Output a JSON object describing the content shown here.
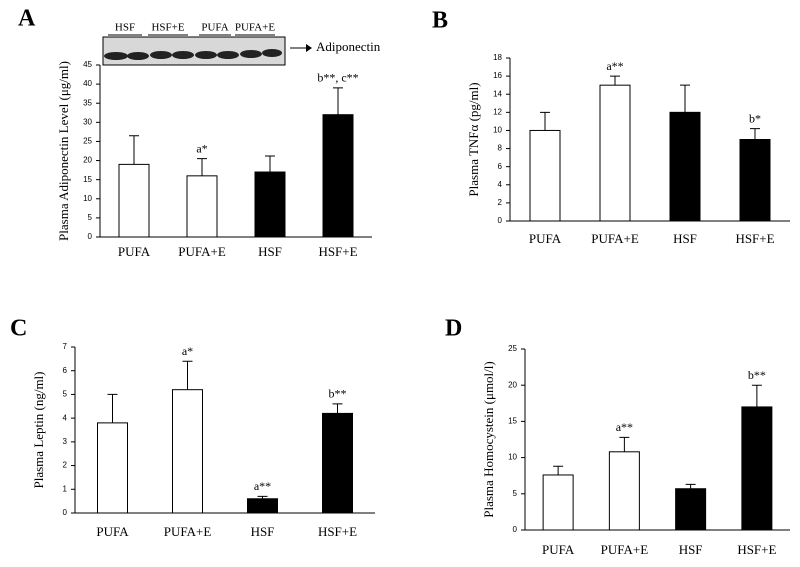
{
  "chart_data": [
    {
      "type": "bar",
      "panel": "A",
      "ylabel": "Plasma Adiponectin Level (μg/ml)",
      "categories": [
        "PUFA",
        "PUFA+E",
        "HSF",
        "HSF+E"
      ],
      "values": [
        19,
        16,
        17,
        32
      ],
      "errors": [
        7.5,
        4.5,
        4.2,
        7
      ],
      "annotations": [
        null,
        "a*",
        null,
        "b**, c**"
      ],
      "colors": [
        "#ffffff",
        "#ffffff",
        "#000000",
        "#000000"
      ],
      "ylim": [
        0,
        45
      ],
      "yticks": [
        0,
        5,
        10,
        15,
        20,
        25,
        30,
        35,
        40,
        45
      ],
      "blot": {
        "lanes": [
          "HSF",
          "HSF+E",
          "PUFA",
          "PUFA+E"
        ],
        "label": "Adiponectin"
      }
    },
    {
      "type": "bar",
      "panel": "B",
      "ylabel": "Plasma TNFα (pg/ml)",
      "categories": [
        "PUFA",
        "PUFA+E",
        "HSF",
        "HSF+E"
      ],
      "values": [
        10,
        15,
        12,
        9
      ],
      "errors": [
        2,
        1,
        3,
        1.2
      ],
      "annotations": [
        null,
        "a**",
        null,
        "b*"
      ],
      "colors": [
        "#ffffff",
        "#ffffff",
        "#000000",
        "#000000"
      ],
      "ylim": [
        0,
        18
      ],
      "yticks": [
        0,
        2,
        4,
        6,
        8,
        10,
        12,
        14,
        16,
        18
      ]
    },
    {
      "type": "bar",
      "panel": "C",
      "ylabel": "Plasma Leptin (ng/ml)",
      "categories": [
        "PUFA",
        "PUFA+E",
        "HSF",
        "HSF+E"
      ],
      "values": [
        3.8,
        5.2,
        0.6,
        4.2
      ],
      "errors": [
        1.2,
        1.2,
        0.1,
        0.4
      ],
      "annotations": [
        null,
        "a*",
        "a**",
        "b**"
      ],
      "colors": [
        "#ffffff",
        "#ffffff",
        "#000000",
        "#000000"
      ],
      "ylim": [
        0,
        7
      ],
      "yticks": [
        0,
        1,
        2,
        3,
        4,
        5,
        6,
        7
      ]
    },
    {
      "type": "bar",
      "panel": "D",
      "ylabel": "Plasma Homocystein (μmol/l)",
      "categories": [
        "PUFA",
        "PUFA+E",
        "HSF",
        "HSF+E"
      ],
      "values": [
        7.6,
        10.8,
        5.7,
        17
      ],
      "errors": [
        1.2,
        2,
        0.6,
        3
      ],
      "annotations": [
        null,
        "a**",
        null,
        "b**"
      ],
      "colors": [
        "#ffffff",
        "#ffffff",
        "#000000",
        "#000000"
      ],
      "ylim": [
        0,
        25
      ],
      "yticks": [
        0,
        5,
        10,
        15,
        20,
        25
      ]
    }
  ]
}
